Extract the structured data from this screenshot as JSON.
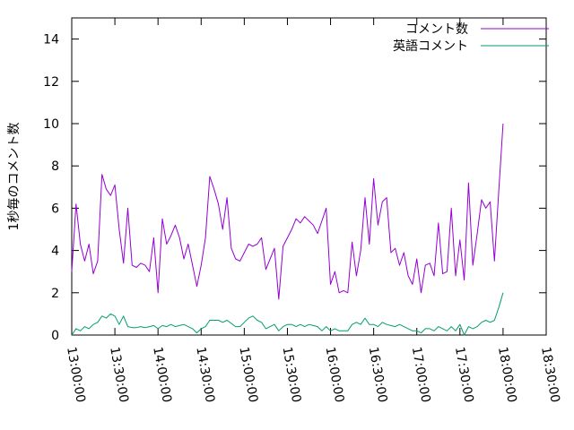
{
  "chart_data": {
    "type": "line",
    "title": "",
    "xlabel": "",
    "ylabel": "1秒毎のコメント数",
    "ylim": [
      0,
      15
    ],
    "xlim": [
      "13:00:00",
      "18:30:00"
    ],
    "yticks": [
      "0",
      "2",
      "4",
      "6",
      "8",
      "10",
      "12",
      "14"
    ],
    "xticks": [
      "13:00:00",
      "13:30:00",
      "14:00:00",
      "14:30:00",
      "15:00:00",
      "15:30:00",
      "16:00:00",
      "16:30:00",
      "17:00:00",
      "17:30:00",
      "18:00:00",
      "18:30:00"
    ],
    "grid": false,
    "legend": "top-right",
    "x_time": [
      "13:00:00",
      "13:03:00",
      "13:06:00",
      "13:09:00",
      "13:12:00",
      "13:15:00",
      "13:18:00",
      "13:21:00",
      "13:24:00",
      "13:27:00",
      "13:30:00",
      "13:33:00",
      "13:36:00",
      "13:39:00",
      "13:42:00",
      "13:45:00",
      "13:48:00",
      "13:51:00",
      "13:54:00",
      "13:57:00",
      "14:00:00",
      "14:03:00",
      "14:06:00",
      "14:09:00",
      "14:12:00",
      "14:15:00",
      "14:18:00",
      "14:21:00",
      "14:24:00",
      "14:27:00",
      "14:30:00",
      "14:33:00",
      "14:36:00",
      "14:39:00",
      "14:42:00",
      "14:45:00",
      "14:48:00",
      "14:51:00",
      "14:54:00",
      "14:57:00",
      "15:00:00",
      "15:03:00",
      "15:06:00",
      "15:09:00",
      "15:12:00",
      "15:15:00",
      "15:18:00",
      "15:21:00",
      "15:24:00",
      "15:27:00",
      "15:30:00",
      "15:33:00",
      "15:36:00",
      "15:39:00",
      "15:42:00",
      "15:45:00",
      "15:48:00",
      "15:51:00",
      "15:54:00",
      "15:57:00",
      "16:00:00",
      "16:03:00",
      "16:06:00",
      "16:09:00",
      "16:12:00",
      "16:15:00",
      "16:18:00",
      "16:21:00",
      "16:24:00",
      "16:27:00",
      "16:30:00",
      "16:33:00",
      "16:36:00",
      "16:39:00",
      "16:42:00",
      "16:45:00",
      "16:48:00",
      "16:51:00",
      "16:54:00",
      "16:57:00",
      "17:00:00",
      "17:03:00",
      "17:06:00",
      "17:09:00",
      "17:12:00",
      "17:15:00",
      "17:18:00",
      "17:21:00",
      "17:24:00",
      "17:27:00",
      "17:30:00",
      "17:33:00",
      "17:36:00",
      "17:39:00",
      "17:42:00",
      "17:45:00",
      "17:48:00",
      "17:51:00",
      "17:54:00",
      "17:57:00",
      "18:00:00"
    ],
    "series": [
      {
        "name": "コメント数",
        "color": "#9400d3",
        "values": [
          3.0,
          6.2,
          4.3,
          3.5,
          4.3,
          2.9,
          3.5,
          7.6,
          6.9,
          6.6,
          7.1,
          5.0,
          3.4,
          6.0,
          3.3,
          3.2,
          3.4,
          3.3,
          3.0,
          4.6,
          2.0,
          5.5,
          4.3,
          4.7,
          5.2,
          4.6,
          3.6,
          4.3,
          3.3,
          2.3,
          3.3,
          4.6,
          7.5,
          6.9,
          6.2,
          5.0,
          6.5,
          4.1,
          3.6,
          3.5,
          3.9,
          4.3,
          4.2,
          4.3,
          4.6,
          3.1,
          3.6,
          4.1,
          1.7,
          4.2,
          4.6,
          5.0,
          5.5,
          5.3,
          5.6,
          5.4,
          5.2,
          4.8,
          5.4,
          6.0,
          2.4,
          3.0,
          2.0,
          2.1,
          2.0,
          4.4,
          2.8,
          4.0,
          6.5,
          4.3,
          7.4,
          5.2,
          6.3,
          6.5,
          3.9,
          4.1,
          3.3,
          3.9,
          2.8,
          2.4,
          3.6,
          2.0,
          3.3,
          3.4,
          2.8,
          5.3,
          2.9,
          3.0,
          6.0,
          2.8,
          4.5,
          2.6,
          7.2,
          3.3,
          4.8,
          6.4,
          6.0,
          6.3,
          3.5,
          6.8,
          10.0
        ]
      },
      {
        "name": "英語コメント",
        "color": "#009e73",
        "values": [
          0.0,
          0.3,
          0.2,
          0.4,
          0.3,
          0.5,
          0.6,
          0.9,
          0.8,
          1.0,
          0.9,
          0.5,
          0.9,
          0.4,
          0.35,
          0.35,
          0.4,
          0.35,
          0.4,
          0.45,
          0.3,
          0.45,
          0.4,
          0.5,
          0.4,
          0.45,
          0.5,
          0.4,
          0.3,
          0.1,
          0.3,
          0.4,
          0.7,
          0.7,
          0.7,
          0.6,
          0.7,
          0.55,
          0.4,
          0.4,
          0.6,
          0.8,
          0.9,
          0.7,
          0.6,
          0.3,
          0.4,
          0.5,
          0.2,
          0.4,
          0.5,
          0.5,
          0.4,
          0.5,
          0.4,
          0.5,
          0.45,
          0.4,
          0.2,
          0.4,
          0.2,
          0.3,
          0.2,
          0.2,
          0.2,
          0.5,
          0.6,
          0.5,
          0.8,
          0.5,
          0.5,
          0.4,
          0.6,
          0.5,
          0.45,
          0.4,
          0.5,
          0.4,
          0.3,
          0.2,
          0.2,
          0.1,
          0.3,
          0.3,
          0.2,
          0.4,
          0.3,
          0.2,
          0.4,
          0.2,
          0.5,
          0.0,
          0.4,
          0.3,
          0.4,
          0.6,
          0.7,
          0.6,
          0.7,
          1.3,
          2.0
        ]
      }
    ]
  }
}
